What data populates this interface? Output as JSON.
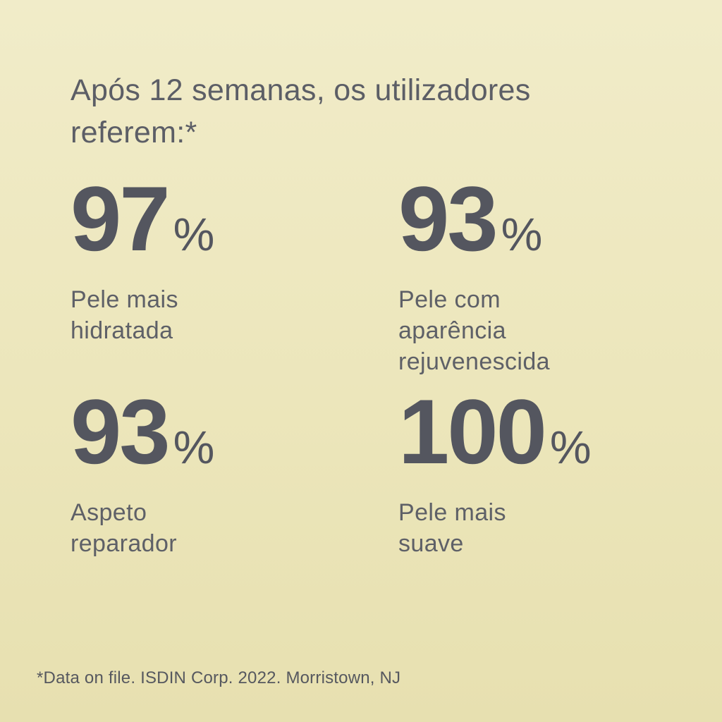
{
  "page": {
    "background_top": "#f1ecc9",
    "background_bottom": "#e7e0b0",
    "number_color": "#54565f",
    "text_color": "#5e6067"
  },
  "title": {
    "line1": "Após 12 semanas, os utilizadores",
    "line2": "referem:*"
  },
  "stats": [
    {
      "value": "97",
      "percent": "%",
      "lines": [
        "Pele mais",
        "hidratada"
      ]
    },
    {
      "value": "93",
      "percent": "%",
      "lines": [
        "Pele com",
        "aparência",
        "rejuvenescida"
      ]
    },
    {
      "value": "93",
      "percent": "%",
      "lines": [
        "Aspeto",
        "reparador"
      ]
    },
    {
      "value": "100",
      "percent": "%",
      "lines": [
        "Pele mais",
        "suave"
      ]
    }
  ],
  "footnote": "*Data on file. ISDIN Corp. 2022. Morristown, NJ"
}
